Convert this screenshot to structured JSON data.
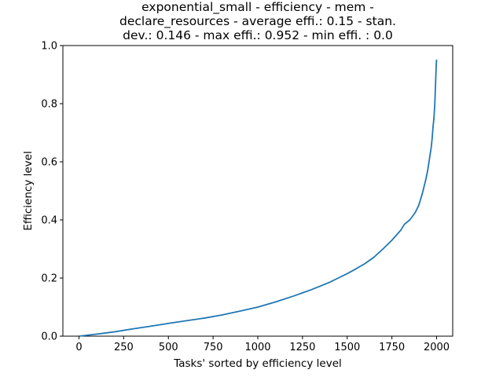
{
  "chart_data": {
    "type": "line",
    "title_lines": [
      "exponential_small - efficiency - mem -",
      "declare_resources - average effi.: 0.15 - stan.",
      "dev.: 0.146 - max effi.: 0.952 - min effi. : 0.0"
    ],
    "xlabel": "Tasks' sorted by efficiency level",
    "ylabel": "Efficiency level",
    "xlim": [
      -90,
      2090
    ],
    "ylim": [
      0.0,
      1.0
    ],
    "x_ticks": [
      0,
      250,
      500,
      750,
      1000,
      1250,
      1500,
      1750,
      2000
    ],
    "y_ticks": [
      "0.0",
      "0.2",
      "0.4",
      "0.6",
      "0.8",
      "1.0"
    ],
    "grid": false,
    "line_color": "#1f77b4",
    "series": [
      {
        "x": [
          0,
          100,
          200,
          300,
          400,
          500,
          600,
          700,
          800,
          900,
          1000,
          1100,
          1200,
          1300,
          1400,
          1450,
          1500,
          1550,
          1600,
          1650,
          1700,
          1750,
          1800,
          1820,
          1850,
          1880,
          1900,
          1920,
          1940,
          1950,
          1960,
          1970,
          1975,
          1980,
          1985,
          1990,
          1993,
          1996,
          1998,
          2000
        ],
        "y": [
          0.0,
          0.007,
          0.015,
          0.025,
          0.034,
          0.044,
          0.053,
          0.062,
          0.073,
          0.086,
          0.1,
          0.118,
          0.138,
          0.16,
          0.185,
          0.2,
          0.215,
          0.232,
          0.25,
          0.272,
          0.3,
          0.33,
          0.365,
          0.385,
          0.4,
          0.425,
          0.45,
          0.49,
          0.54,
          0.57,
          0.61,
          0.65,
          0.68,
          0.72,
          0.75,
          0.8,
          0.85,
          0.9,
          0.935,
          0.952
        ]
      }
    ]
  }
}
